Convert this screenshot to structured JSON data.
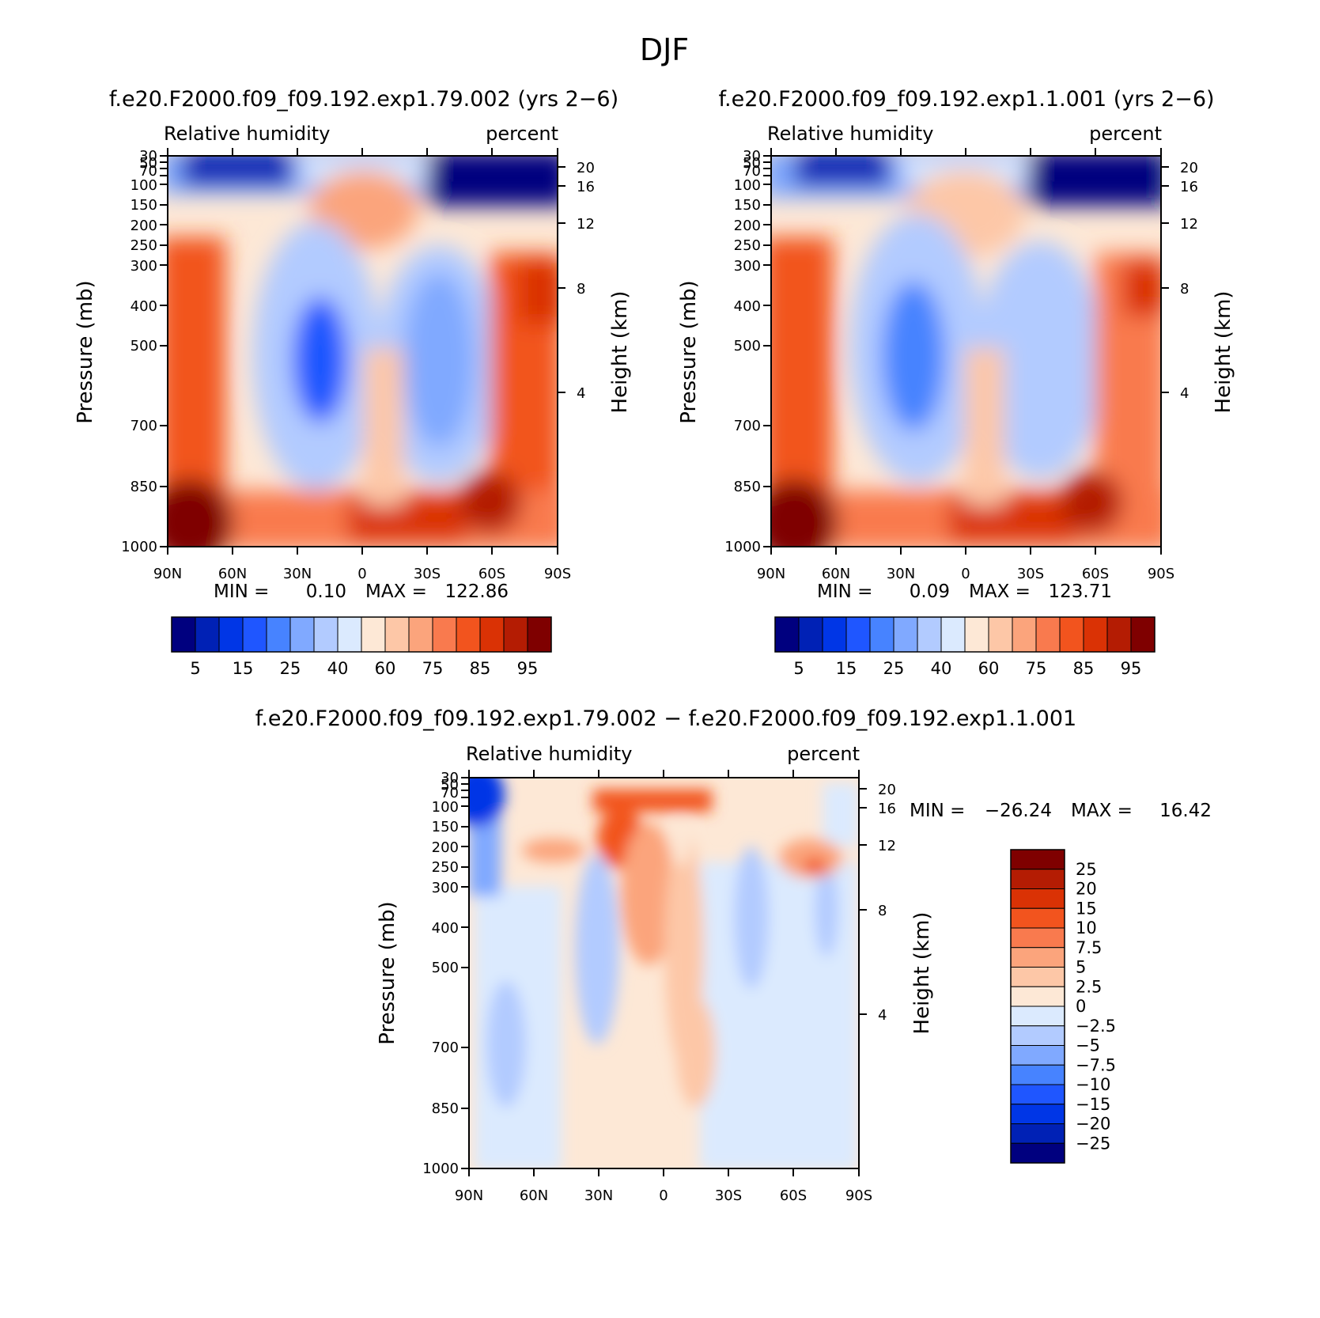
{
  "figure_title": "DJF",
  "chart_data": [
    {
      "type": "heatmap",
      "title": "f.e20.F2000.f09_f09.192.exp1.79.002 (yrs 2−6)",
      "left_label": "Relative humidity",
      "right_label": "percent",
      "ylabel": "Pressure (mb)",
      "ylabel_right": "Height (km)",
      "x_ticks": [
        "90N",
        "60N",
        "30N",
        "0",
        "30S",
        "60S",
        "90S"
      ],
      "y_ticks": [
        "30",
        "50",
        "70",
        "100",
        "150",
        "200",
        "250",
        "300",
        "400",
        "500",
        "700",
        "850",
        "1000"
      ],
      "y_ticks_right": [
        "20",
        "16",
        "12",
        "8",
        "4"
      ],
      "stats": {
        "min_label": "MIN =",
        "min_value": "0.10",
        "max_label": "MAX =",
        "max_value": "122.86"
      },
      "legend_labels": [
        "5",
        "15",
        "25",
        "40",
        "60",
        "75",
        "85",
        "95"
      ],
      "colors": [
        "#00007f",
        "#0021b5",
        "#0036e6",
        "#1f56ff",
        "#4783ff",
        "#80a9ff",
        "#b2cbff",
        "#dbeafe",
        "#fde8d6",
        "#fdc7a7",
        "#fba47c",
        "#f97a4e",
        "#f2541e",
        "#da3205",
        "#b41c03",
        "#7f0000"
      ]
    },
    {
      "type": "heatmap",
      "title": "f.e20.F2000.f09_f09.192.exp1.1.001 (yrs 2−6)",
      "left_label": "Relative humidity",
      "right_label": "percent",
      "ylabel": "Pressure (mb)",
      "ylabel_right": "Height (km)",
      "x_ticks": [
        "90N",
        "60N",
        "30N",
        "0",
        "30S",
        "60S",
        "90S"
      ],
      "y_ticks": [
        "30",
        "50",
        "70",
        "100",
        "150",
        "200",
        "250",
        "300",
        "400",
        "500",
        "700",
        "850",
        "1000"
      ],
      "y_ticks_right": [
        "20",
        "16",
        "12",
        "8",
        "4"
      ],
      "stats": {
        "min_label": "MIN =",
        "min_value": "0.09",
        "max_label": "MAX =",
        "max_value": "123.71"
      },
      "legend_labels": [
        "5",
        "15",
        "25",
        "40",
        "60",
        "75",
        "85",
        "95"
      ],
      "colors": [
        "#00007f",
        "#0021b5",
        "#0036e6",
        "#1f56ff",
        "#4783ff",
        "#80a9ff",
        "#b2cbff",
        "#dbeafe",
        "#fde8d6",
        "#fdc7a7",
        "#fba47c",
        "#f97a4e",
        "#f2541e",
        "#da3205",
        "#b41c03",
        "#7f0000"
      ]
    },
    {
      "type": "heatmap",
      "title": "f.e20.F2000.f09_f09.192.exp1.79.002 − f.e20.F2000.f09_f09.192.exp1.1.001",
      "left_label": "Relative humidity",
      "right_label": "percent",
      "ylabel": "Pressure (mb)",
      "ylabel_right": "Height (km)",
      "x_ticks": [
        "90N",
        "60N",
        "30N",
        "0",
        "30S",
        "60S",
        "90S"
      ],
      "y_ticks": [
        "30",
        "50",
        "70",
        "100",
        "150",
        "200",
        "250",
        "300",
        "400",
        "500",
        "700",
        "850",
        "1000"
      ],
      "y_ticks_right": [
        "20",
        "16",
        "12",
        "8",
        "4"
      ],
      "stats": {
        "min_label": "MIN =",
        "min_value": "−26.24",
        "max_label": "MAX =",
        "max_value": "16.42"
      },
      "legend_labels": [
        "25",
        "20",
        "15",
        "10",
        "7.5",
        "5",
        "2.5",
        "0",
        "−2.5",
        "−5",
        "−7.5",
        "−10",
        "−15",
        "−20",
        "−25"
      ],
      "colors": [
        "#7f0000",
        "#b41c03",
        "#da3205",
        "#f2541e",
        "#f97a4e",
        "#fba47c",
        "#fdc7a7",
        "#fde8d6",
        "#dbeafe",
        "#b2cbff",
        "#80a9ff",
        "#4783ff",
        "#1f56ff",
        "#0036e6",
        "#0021b5",
        "#00007f"
      ]
    }
  ]
}
